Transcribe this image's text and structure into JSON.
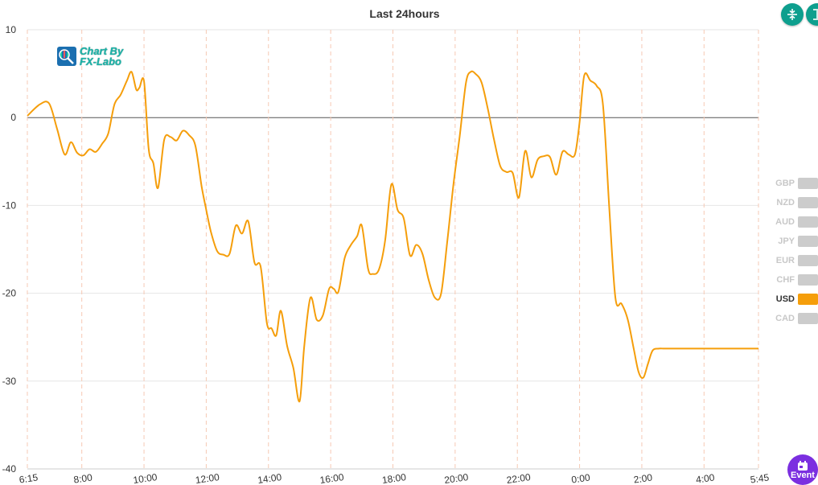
{
  "chart_data": {
    "type": "line",
    "title": "Last 24hours",
    "ylim": [
      -40,
      10
    ],
    "y_ticks": [
      "10",
      "0",
      "-10",
      "-20",
      "-30",
      "-40"
    ],
    "x_tick_labels": [
      "6:15",
      "8:00",
      "10:00",
      "12:00",
      "14:00",
      "16:00",
      "18:00",
      "20:00",
      "22:00",
      "0:00",
      "2:00",
      "4:00",
      "5:45"
    ],
    "x_tick_hours": [
      0,
      1.75,
      3.75,
      5.75,
      7.75,
      9.75,
      11.75,
      13.75,
      15.75,
      17.75,
      19.75,
      21.75,
      23.5
    ],
    "series": [
      {
        "name": "USD",
        "color": "#f59e0b",
        "x": [
          0,
          0.4,
          0.7,
          0.95,
          1.2,
          1.4,
          1.6,
          1.8,
          2.0,
          2.2,
          2.4,
          2.6,
          2.8,
          3.0,
          3.2,
          3.35,
          3.5,
          3.6,
          3.75,
          3.9,
          4.05,
          4.2,
          4.4,
          4.6,
          4.8,
          5.0,
          5.2,
          5.4,
          5.6,
          5.75,
          5.9,
          6.1,
          6.3,
          6.5,
          6.7,
          6.9,
          7.1,
          7.3,
          7.5,
          7.7,
          7.85,
          8.0,
          8.15,
          8.35,
          8.55,
          8.75,
          8.9,
          9.1,
          9.3,
          9.5,
          9.7,
          9.85,
          10.0,
          10.2,
          10.4,
          10.6,
          10.75,
          10.95,
          11.1,
          11.3,
          11.5,
          11.7,
          11.9,
          12.1,
          12.3,
          12.5,
          12.7,
          12.9,
          13.1,
          13.3,
          13.5,
          13.7,
          13.9,
          14.1,
          14.25,
          14.4,
          14.6,
          14.8,
          15.0,
          15.2,
          15.4,
          15.6,
          15.8,
          16.0,
          16.2,
          16.4,
          16.6,
          16.8,
          17.0,
          17.2,
          17.4,
          17.6,
          17.75,
          17.9,
          18.1,
          18.3,
          18.5,
          18.7,
          18.9,
          19.1,
          19.3,
          19.5,
          19.65,
          19.8,
          19.95,
          20.1,
          20.3,
          20.45,
          20.6,
          20.8,
          20.95,
          21.1,
          21.25,
          21.4,
          21.6,
          21.75,
          21.85,
          22.0,
          22.2,
          22.35,
          22.5,
          22.65,
          22.8,
          22.95,
          23.1,
          23.25,
          23.4,
          23.5
        ],
        "y": [
          0.2,
          1.5,
          1.6,
          -1.2,
          -4.2,
          -2.8,
          -4.0,
          -4.3,
          -3.6,
          -3.9,
          -3.0,
          -1.8,
          1.5,
          2.6,
          4.2,
          5.2,
          3.2,
          3.4,
          4.1,
          -3.6,
          -5.2,
          -8.0,
          -2.5,
          -2.2,
          -2.6,
          -1.5,
          -2.0,
          -3.2,
          -7.8,
          -10.5,
          -13.0,
          -15.2,
          -15.6,
          -15.5,
          -12.3,
          -13.2,
          -11.8,
          -16.5,
          -17.0,
          -23.4,
          -24.0,
          -24.8,
          -22.0,
          -26.0,
          -28.5,
          -32.3,
          -26.0,
          -20.5,
          -23.0,
          -22.5,
          -19.5,
          -19.5,
          -19.8,
          -16.0,
          -14.5,
          -13.5,
          -12.3,
          -17.2,
          -17.8,
          -17.3,
          -14.0,
          -7.6,
          -10.5,
          -11.5,
          -15.7,
          -14.5,
          -15.5,
          -18.5,
          -20.5,
          -20.0,
          -14.0,
          -7.5,
          -2.0,
          4.0,
          5.2,
          5.0,
          4.0,
          1.0,
          -2.5,
          -5.5,
          -6.2,
          -6.3,
          -9.1,
          -3.8,
          -6.8,
          -4.8,
          -4.4,
          -4.5,
          -6.5,
          -3.9,
          -4.2,
          -4.2,
          -0.5,
          4.8,
          4.2,
          3.6,
          1.5,
          -10.0,
          -20.5,
          -21.2,
          -23.0,
          -26.5,
          -29.0,
          -29.6,
          -28.0,
          -26.5,
          -26.3,
          -26.3,
          -26.3,
          -26.3,
          -26.3,
          -26.3,
          -26.3,
          -26.3,
          -26.3,
          -26.3,
          -26.3,
          -26.3,
          -26.3,
          -26.3,
          -26.3,
          -26.3,
          -26.3,
          -26.3,
          -26.3,
          -26.3,
          -26.3,
          -26.3
        ]
      }
    ],
    "legend": {
      "placement": "right",
      "items": [
        {
          "label": "GBP",
          "active": false
        },
        {
          "label": "NZD",
          "active": false
        },
        {
          "label": "AUD",
          "active": false
        },
        {
          "label": "JPY",
          "active": false
        },
        {
          "label": "EUR",
          "active": false
        },
        {
          "label": "CHF",
          "active": false
        },
        {
          "label": "USD",
          "active": true,
          "color": "#f59e0b"
        },
        {
          "label": "CAD",
          "active": false
        }
      ]
    }
  },
  "logo": {
    "line1": "Chart By",
    "line2": "FX-Labo"
  },
  "event_button": {
    "label": "Event"
  },
  "colors": {
    "accent": "#0e9f8e",
    "event": "#7b2fe0",
    "line": "#f59e0b"
  }
}
